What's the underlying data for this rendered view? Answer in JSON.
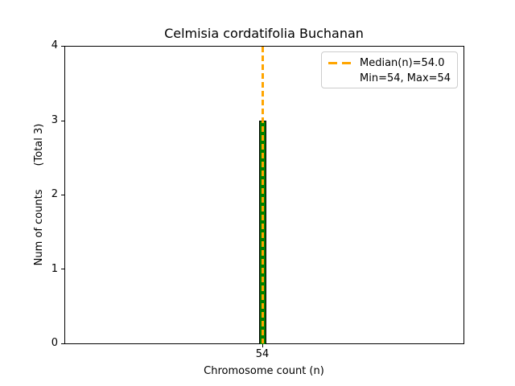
{
  "chart_data": {
    "type": "bar",
    "title": "Celmisia cordatifolia Buchanan",
    "xlabel": "Chromosome count (n)",
    "ylabel": "Num of counts       (Total 3)",
    "categories": [
      54
    ],
    "values": [
      3
    ],
    "total_counts": 3,
    "xticks": [
      "54"
    ],
    "yticks": [
      "0",
      "1",
      "2",
      "3",
      "4"
    ],
    "ylim": [
      0,
      4
    ],
    "grid": false,
    "legend_position": "upper right",
    "legend_labels": [
      "Median(n)=54.0",
      "Min=54, Max=54"
    ],
    "median": 54.0,
    "min": 54,
    "max": 54,
    "colors": {
      "bar_fill": "#008000",
      "bar_edge": "#000000",
      "median_line": "#FFA500",
      "axes_spine": "#000000",
      "legend_border": "#cccccc",
      "text": "#000000",
      "background": "#ffffff"
    }
  }
}
